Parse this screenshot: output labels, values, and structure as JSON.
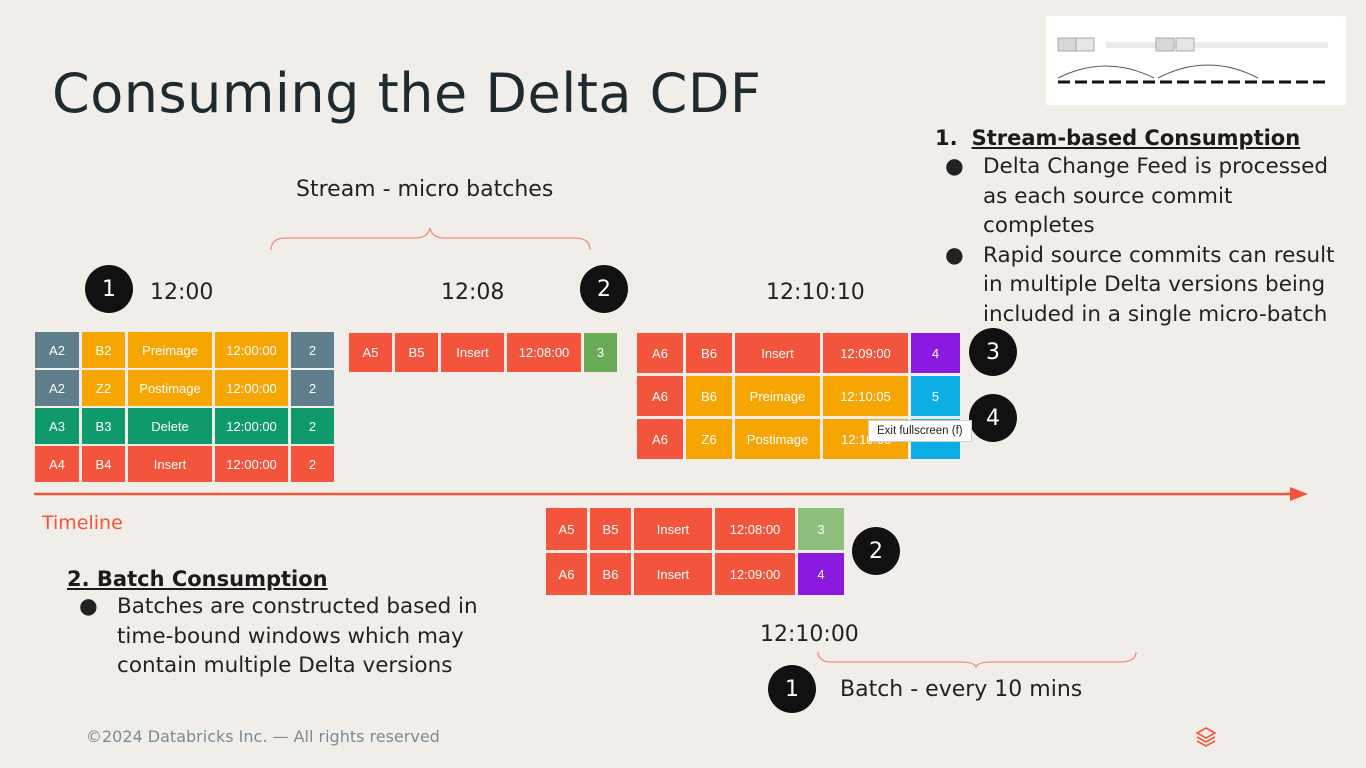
{
  "slide": {
    "title": "Consuming the Delta CDF",
    "footer": "©2024 Databricks Inc. — All rights reserved"
  },
  "stream_section": {
    "number": "1.",
    "heading": "Stream-based Consumption",
    "bullets": [
      "Delta Change Feed is processed as each source commit completes",
      "Rapid source commits can result in multiple Delta versions being included in a single micro-batch"
    ]
  },
  "batch_section": {
    "heading": "2. Batch Consumption",
    "bullets": [
      "Batches are constructed based in time-bound windows which may contain multiple Delta versions"
    ]
  },
  "diagram": {
    "stream_label": "Stream - micro batches",
    "batch_label": "Batch - every 10 mins",
    "timeline_label": "Timeline",
    "times": {
      "t1": "12:00",
      "t2": "12:08",
      "t3": "12:10:10",
      "t4": "12:10:00"
    },
    "badges": {
      "b1": "1",
      "b2": "2",
      "b3": "3",
      "b4": "4",
      "b5": "2",
      "b6": "1"
    },
    "group1": [
      [
        "A2",
        "B2",
        "Preimage",
        "12:00:00",
        "2"
      ],
      [
        "A2",
        "Z2",
        "Postimage",
        "12:00:00",
        "2"
      ],
      [
        "A3",
        "B3",
        "Delete",
        "12:00:00",
        "2"
      ],
      [
        "A4",
        "B4",
        "Insert",
        "12:00:00",
        "2"
      ]
    ],
    "group2": [
      [
        "A5",
        "B5",
        "Insert",
        "12:08:00",
        "3"
      ]
    ],
    "group3": [
      [
        "A6",
        "B6",
        "Insert",
        "12:09:00",
        "4"
      ],
      [
        "A6",
        "B6",
        "Preimage",
        "12:10:05",
        "5"
      ],
      [
        "A6",
        "Z6",
        "Postimage",
        "12:10:05",
        ""
      ]
    ],
    "group4": [
      [
        "A5",
        "B5",
        "Insert",
        "12:08:00",
        "3"
      ],
      [
        "A6",
        "B6",
        "Insert",
        "12:09:00",
        "4"
      ]
    ]
  },
  "tooltip": "Exit fullscreen (f)",
  "colors": {
    "slate": "#5e7e8b",
    "orange": "#f7a500",
    "green": "#0e9a6c",
    "red": "#f2553b",
    "purple": "#8b19e0",
    "blue": "#0baee5",
    "timeline": "#f2553b"
  }
}
